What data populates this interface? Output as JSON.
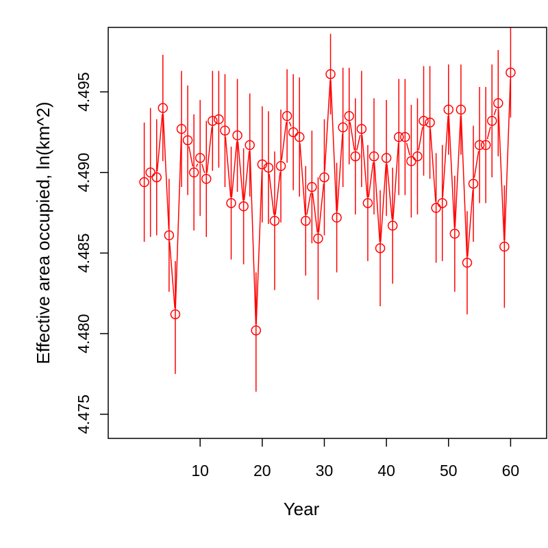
{
  "chart_data": {
    "type": "line",
    "title": "",
    "xlabel": "Year",
    "ylabel": "Effective area occupied, ln(km^2)",
    "xlim": [
      -4.8,
      65.8
    ],
    "ylim": [
      4.4735,
      4.499
    ],
    "x_ticks": [
      10,
      20,
      30,
      40,
      50,
      60
    ],
    "x_tick_labels": [
      "10",
      "20",
      "30",
      "40",
      "50",
      "60"
    ],
    "y_ticks": [
      4.475,
      4.48,
      4.485,
      4.49,
      4.495
    ],
    "y_tick_labels": [
      "4.475",
      "4.480",
      "4.485",
      "4.490",
      "4.495"
    ],
    "grid": false,
    "color": "#ff0000",
    "series": [
      {
        "x": [
          1,
          2,
          3,
          4,
          5,
          6,
          7,
          8,
          9,
          10,
          11,
          12,
          13,
          14,
          15,
          16,
          17,
          18,
          19,
          20,
          21,
          22,
          23,
          24,
          25,
          26,
          27,
          28,
          29,
          30,
          31,
          32,
          33,
          34,
          35,
          36,
          37,
          38,
          39,
          40,
          41,
          42,
          43,
          44,
          45,
          46,
          47,
          48,
          49,
          50,
          51,
          52,
          53,
          54,
          55,
          56,
          57,
          58,
          59,
          60
        ],
        "y": [
          4.4894,
          4.49,
          4.4897,
          4.494,
          4.4861,
          4.4812,
          4.4927,
          4.492,
          4.49,
          4.4909,
          4.4896,
          4.4932,
          4.4933,
          4.4926,
          4.4881,
          4.4923,
          4.4879,
          4.4917,
          4.4802,
          4.4905,
          4.4903,
          4.487,
          4.4904,
          4.4935,
          4.4925,
          4.4922,
          4.487,
          4.4891,
          4.4859,
          4.4897,
          4.4961,
          4.4872,
          4.4928,
          4.4935,
          4.491,
          4.4927,
          4.4881,
          4.491,
          4.4853,
          4.4909,
          4.4867,
          4.4922,
          4.4922,
          4.4907,
          4.491,
          4.4932,
          4.4931,
          4.4878,
          4.4881,
          4.4939,
          4.4862,
          4.4939,
          4.4844,
          4.4893,
          4.4917,
          4.4917,
          4.4932,
          4.4943,
          4.4854,
          4.4962
        ],
        "upper": [
          4.4931,
          4.494,
          4.4933,
          4.4973,
          4.4896,
          4.4845,
          4.4963,
          4.4954,
          4.4936,
          4.4945,
          4.4932,
          4.4963,
          4.4963,
          4.4961,
          4.4916,
          4.4958,
          4.4915,
          4.4949,
          4.4838,
          4.4941,
          4.4938,
          4.4913,
          4.4939,
          4.4964,
          4.4961,
          4.4959,
          4.4904,
          4.4926,
          4.4897,
          4.4933,
          4.4986,
          4.4906,
          4.4965,
          4.4965,
          4.4946,
          4.4963,
          4.4917,
          4.4946,
          4.4889,
          4.4945,
          4.4903,
          4.4958,
          4.4958,
          4.4942,
          4.4946,
          4.4966,
          4.4966,
          4.4912,
          4.4917,
          4.4967,
          4.4898,
          4.4967,
          4.4876,
          4.4929,
          4.4953,
          4.4953,
          4.4967,
          4.4976,
          4.4892,
          4.499
        ],
        "lower": [
          4.4857,
          4.486,
          4.4861,
          4.4907,
          4.4826,
          4.4775,
          4.4891,
          4.4886,
          4.4864,
          4.4873,
          4.486,
          4.4901,
          4.4903,
          4.4891,
          4.4846,
          4.4888,
          4.4843,
          4.4885,
          4.4764,
          4.4869,
          4.4868,
          4.4827,
          4.4869,
          4.4906,
          4.4889,
          4.4885,
          4.4836,
          4.4856,
          4.4821,
          4.4861,
          4.4936,
          4.4838,
          4.4891,
          4.4905,
          4.4874,
          4.4891,
          4.4845,
          4.4874,
          4.4817,
          4.4873,
          4.4831,
          4.4886,
          4.4886,
          4.4872,
          4.4874,
          4.4898,
          4.4896,
          4.4844,
          4.4845,
          4.4911,
          4.4826,
          4.4911,
          4.4812,
          4.4857,
          4.4881,
          4.4881,
          4.4897,
          4.491,
          4.4816,
          4.4934
        ]
      }
    ]
  }
}
